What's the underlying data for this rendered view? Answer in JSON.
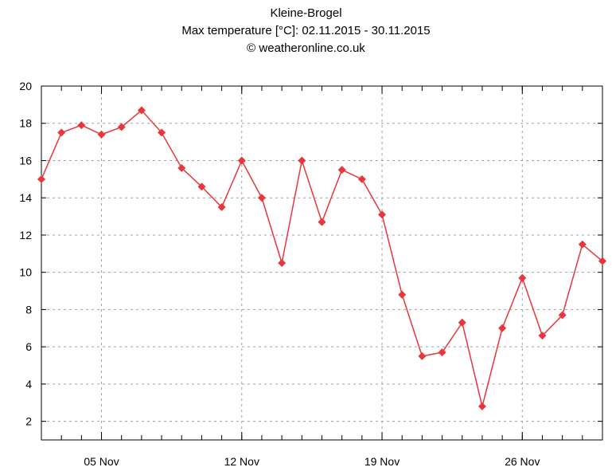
{
  "header": {
    "title": "Kleine-Brogel",
    "subtitle": "Max temperature [°C]: 02.11.2015 - 30.11.2015",
    "credit": "© weatheronline.co.uk"
  },
  "colors": {
    "series": "#e8363c",
    "grid": "#a0a0a0",
    "axis": "#000000"
  },
  "chart_data": {
    "type": "line",
    "title": "Kleine-Brogel",
    "subtitle": "Max temperature [°C]: 02.11.2015 - 30.11.2015",
    "xlabel": "",
    "ylabel": "",
    "ylim": [
      1,
      20
    ],
    "xlim": [
      "2015-11-02",
      "2015-11-30"
    ],
    "y_ticks": [
      2,
      4,
      6,
      8,
      10,
      12,
      14,
      16,
      18,
      20
    ],
    "x_ticks": [
      {
        "date": "2015-11-05",
        "label": "05 Nov"
      },
      {
        "date": "2015-11-12",
        "label": "12 Nov"
      },
      {
        "date": "2015-11-19",
        "label": "19 Nov"
      },
      {
        "date": "2015-11-26",
        "label": "26 Nov"
      }
    ],
    "grid": true,
    "marker": "diamond",
    "series": [
      {
        "x": [
          "2015-11-02",
          "2015-11-03",
          "2015-11-04",
          "2015-11-05",
          "2015-11-06",
          "2015-11-07",
          "2015-11-08",
          "2015-11-09",
          "2015-11-10",
          "2015-11-11",
          "2015-11-12",
          "2015-11-13",
          "2015-11-14",
          "2015-11-15",
          "2015-11-16",
          "2015-11-17",
          "2015-11-18",
          "2015-11-19",
          "2015-11-20",
          "2015-11-21",
          "2015-11-22",
          "2015-11-23",
          "2015-11-24",
          "2015-11-25",
          "2015-11-26",
          "2015-11-27",
          "2015-11-28",
          "2015-11-29",
          "2015-11-30"
        ],
        "values": [
          15.0,
          17.5,
          17.9,
          17.4,
          17.8,
          18.7,
          17.5,
          15.6,
          14.6,
          13.5,
          16.0,
          14.0,
          10.5,
          16.0,
          12.7,
          15.5,
          15.0,
          13.1,
          8.8,
          5.5,
          5.7,
          7.3,
          2.8,
          7.0,
          9.7,
          6.6,
          7.7,
          11.5,
          10.6
        ]
      }
    ]
  }
}
